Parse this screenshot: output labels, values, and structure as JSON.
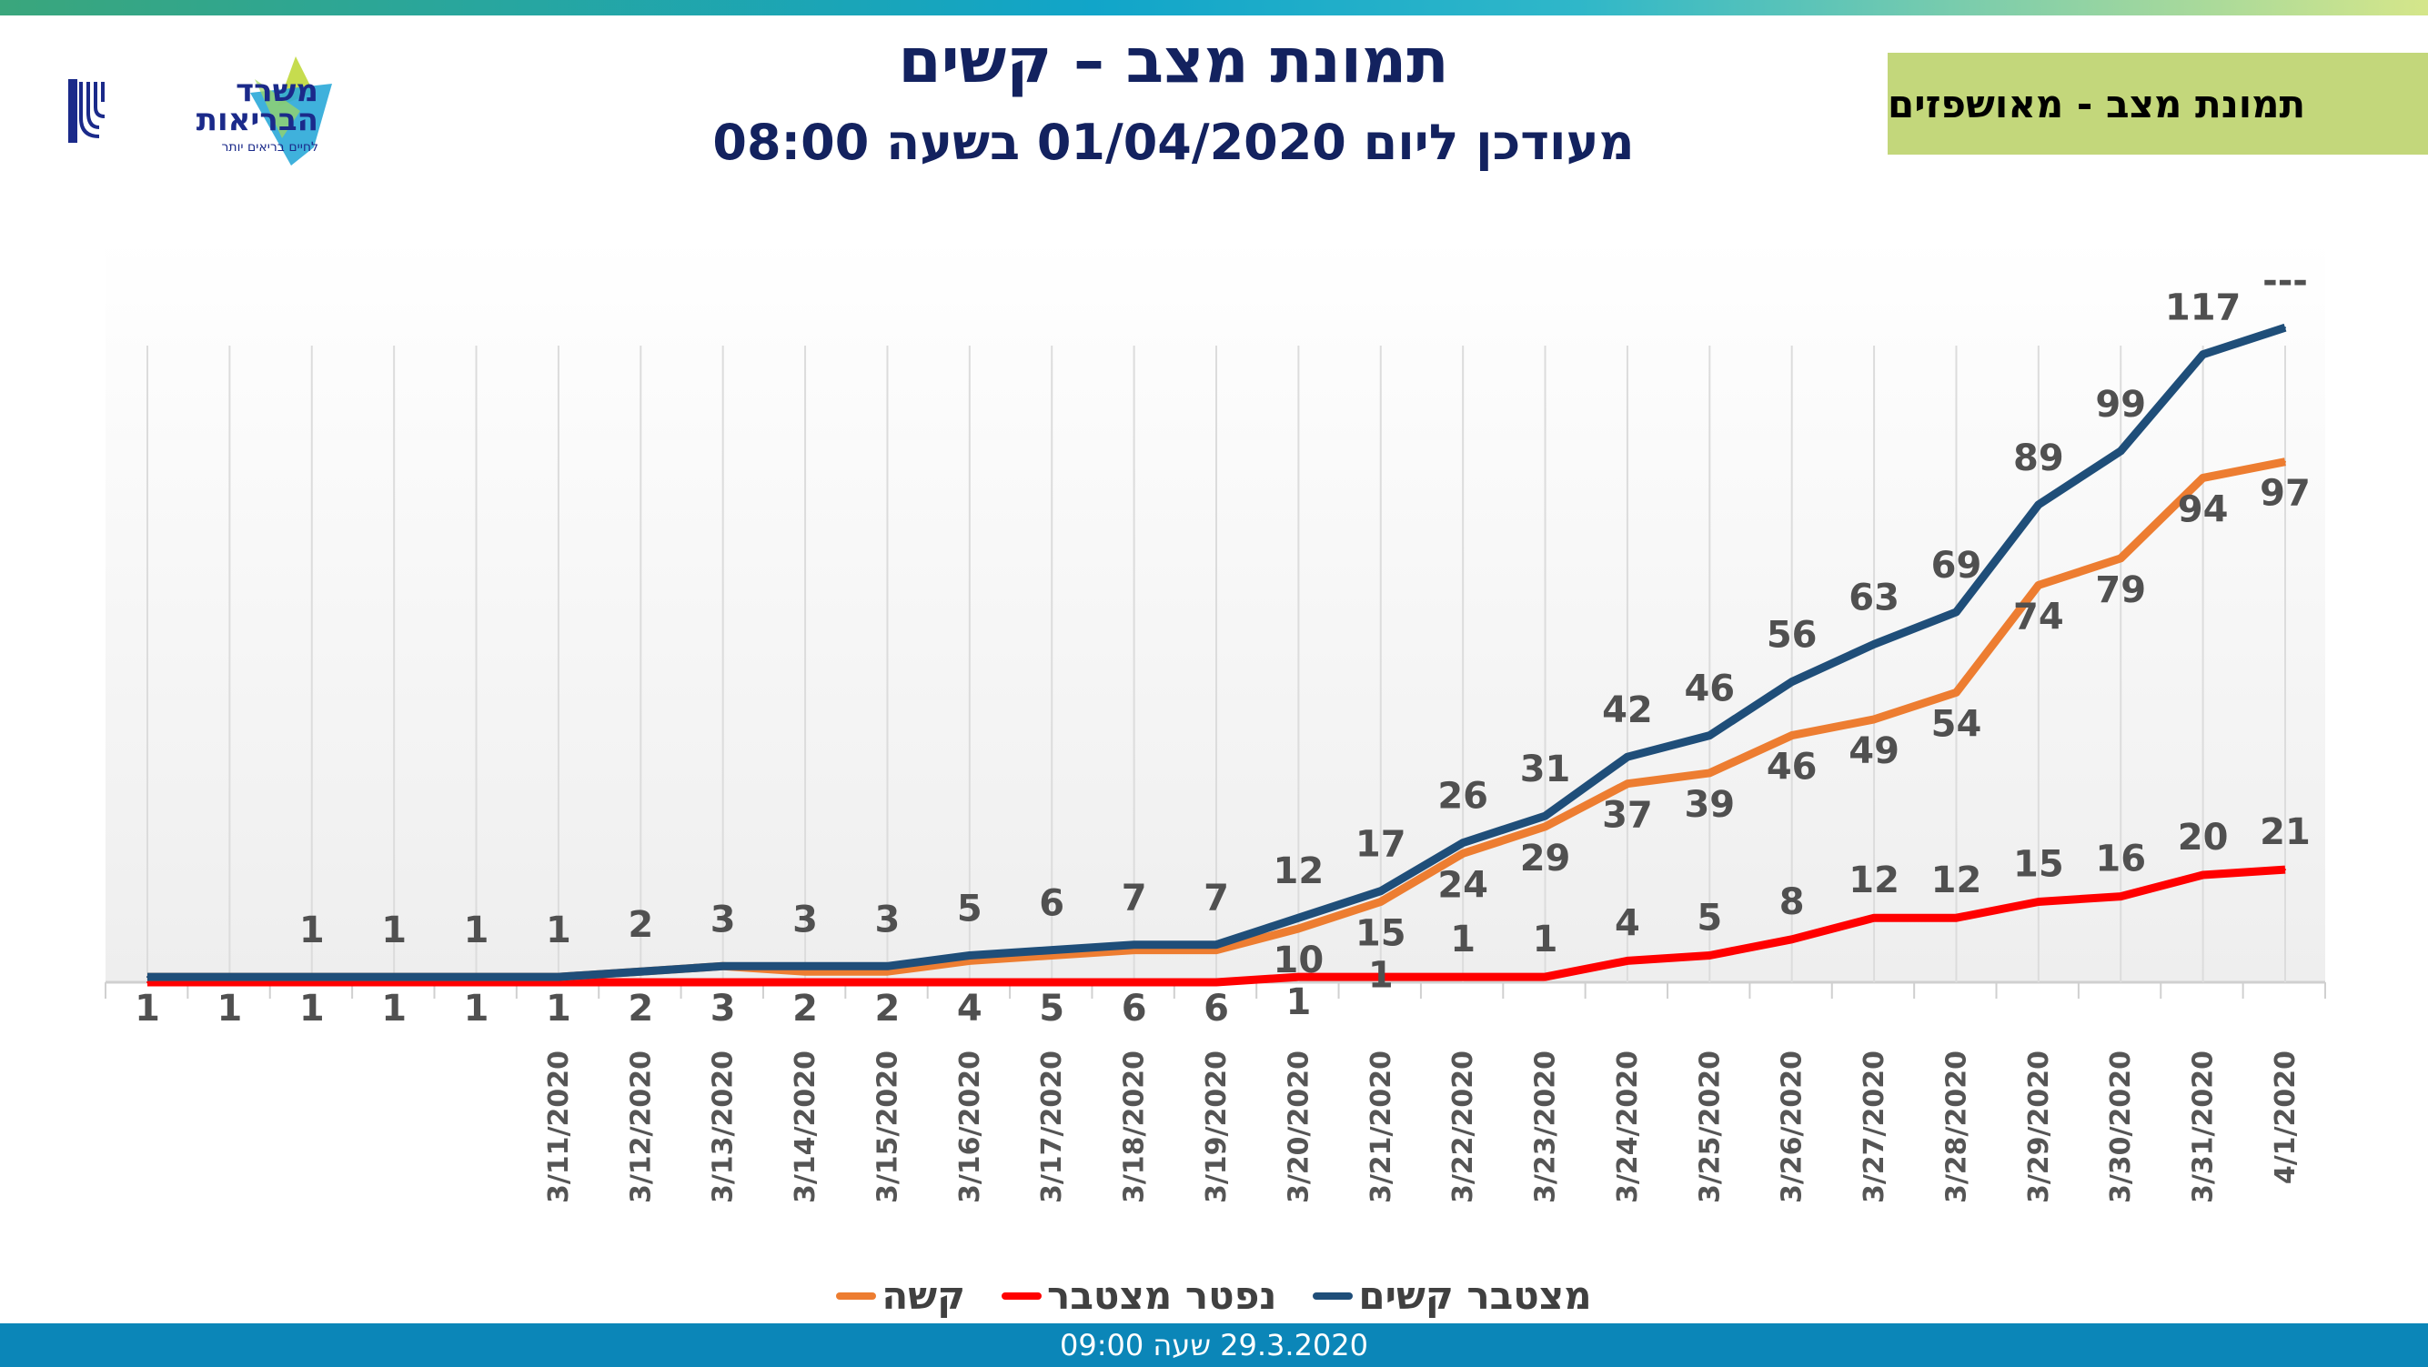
{
  "header": {
    "title": "תמונת מצב – קשים",
    "subtitle": "מעודכן ליום 01/04/2020 בשעה 08:00",
    "section_badge": "תמונת מצב - מאושפזים"
  },
  "logo": {
    "name": "משרד הבריאות",
    "tagline": "לחיים בריאים יותר"
  },
  "footer": {
    "text": "29.3.2020   שעה 09:00"
  },
  "colors": {
    "cumulative": "#1f4e79",
    "severe": "#ed7d31",
    "deceased": "#ff0000",
    "band": "#0b86b8",
    "badge": "#c3d77b",
    "title": "#13225f"
  },
  "chart_data": {
    "type": "line",
    "title": "",
    "xlabel": "",
    "ylabel": "",
    "grid": "vertical",
    "legend": "bottom",
    "categories": [
      "",
      "",
      "",
      "",
      "",
      "3/11/2020",
      "3/12/2020",
      "3/13/2020",
      "3/14/2020",
      "3/15/2020",
      "3/16/2020",
      "3/17/2020",
      "3/18/2020",
      "3/19/2020",
      "3/20/2020",
      "3/21/2020",
      "3/22/2020",
      "3/23/2020",
      "3/24/2020",
      "3/25/2020",
      "3/26/2020",
      "3/27/2020",
      "3/28/2020",
      "3/29/2020",
      "3/30/2020",
      "3/31/2020",
      "4/1/2020"
    ],
    "series": [
      {
        "name": "מצטבר קשים",
        "key": "cumulative",
        "values": [
          1,
          1,
          1,
          1,
          1,
          1,
          2,
          3,
          3,
          3,
          5,
          6,
          7,
          7,
          12,
          17,
          26,
          31,
          42,
          46,
          56,
          63,
          69,
          89,
          99,
          117,
          122
        ],
        "labels": [
          "",
          "",
          "1",
          "1",
          "1",
          "1",
          "2",
          "3",
          "3",
          "3",
          "5",
          "6",
          "7",
          "7",
          "12",
          "17",
          "26",
          "31",
          "42",
          "46",
          "56",
          "63",
          "69",
          "89",
          "99",
          "117",
          "---"
        ]
      },
      {
        "name": "קשה",
        "key": "severe",
        "values": [
          1,
          1,
          1,
          1,
          1,
          1,
          2,
          3,
          2,
          2,
          4,
          5,
          6,
          6,
          10,
          15,
          24,
          29,
          37,
          39,
          46,
          49,
          54,
          74,
          79,
          94,
          97
        ],
        "labels": [
          "1",
          "1",
          "1",
          "1",
          "1",
          "1",
          "2",
          "3",
          "2",
          "2",
          "4",
          "5",
          "6",
          "6",
          "10",
          "15",
          "24",
          "29",
          "37",
          "39",
          "46",
          "49",
          "54",
          "74",
          "79",
          "94",
          "97"
        ]
      },
      {
        "name": "נפטר מצטבר",
        "key": "deceased",
        "values": [
          0,
          0,
          0,
          0,
          0,
          0,
          0,
          0,
          0,
          0,
          0,
          0,
          0,
          0,
          1,
          1,
          1,
          1,
          4,
          5,
          8,
          12,
          12,
          15,
          16,
          20,
          21
        ],
        "labels": [
          "",
          "",
          "",
          "",
          "",
          "",
          "",
          "",
          "",
          "",
          "",
          "",
          "",
          "",
          "1",
          "1",
          "1",
          "1",
          "4",
          "5",
          "8",
          "12",
          "12",
          "15",
          "16",
          "20",
          "21"
        ]
      }
    ]
  }
}
